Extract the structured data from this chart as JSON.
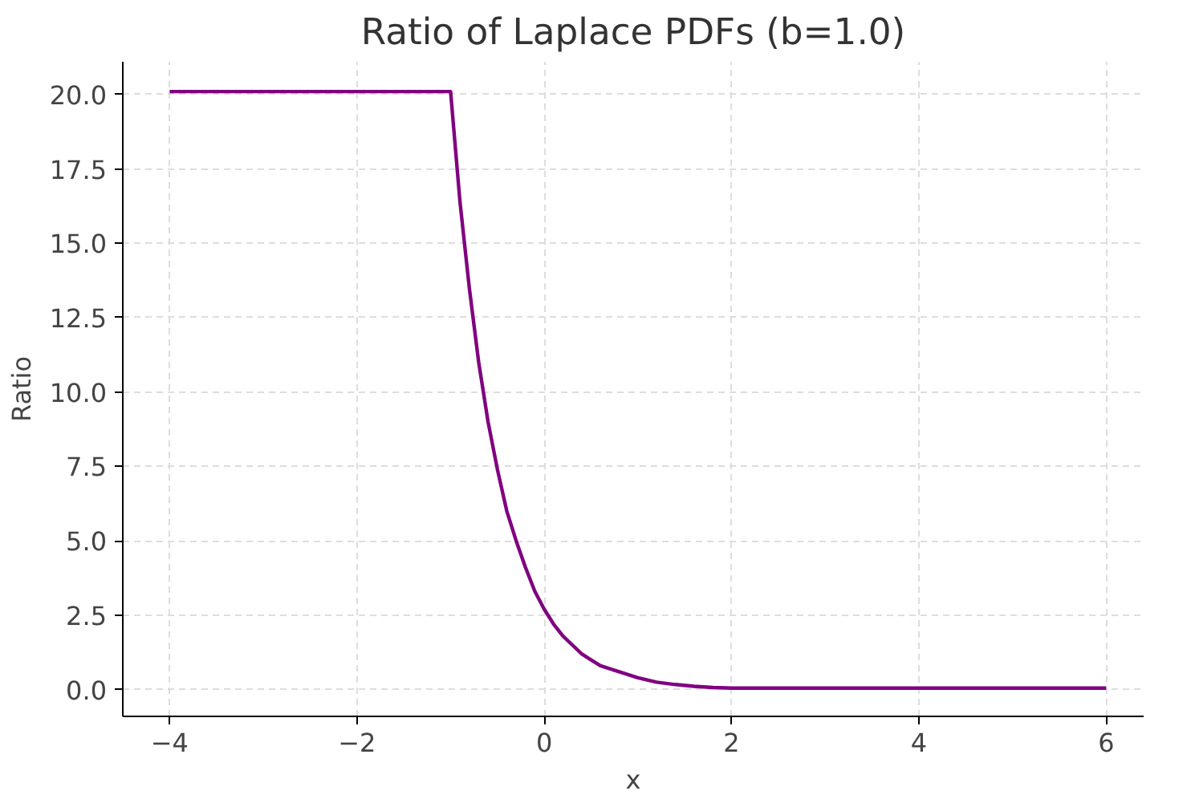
{
  "chart_data": {
    "type": "line",
    "title": "Ratio of Laplace PDFs (b=1.0)",
    "xlabel": "x",
    "ylabel": "Ratio",
    "x": [
      -4,
      -1,
      -0.9,
      -0.8,
      -0.7,
      -0.6,
      -0.5,
      -0.4,
      -0.3,
      -0.2,
      -0.1,
      0,
      0.1,
      0.2,
      0.3,
      0.4,
      0.5,
      0.6,
      0.7,
      0.8,
      0.9,
      1.0,
      1.2,
      1.4,
      1.6,
      1.8,
      2.0,
      6
    ],
    "series": [
      {
        "color": "#800080",
        "values": [
          20.1,
          20.1,
          16.4,
          13.5,
          11.0,
          9.0,
          7.4,
          6.0,
          5.0,
          4.1,
          3.3,
          2.7,
          2.2,
          1.8,
          1.5,
          1.2,
          1.0,
          0.8,
          0.7,
          0.6,
          0.5,
          0.4,
          0.25,
          0.17,
          0.11,
          0.07,
          0.05,
          0.05
        ]
      }
    ],
    "xlim": [
      -4.5,
      6.4
    ],
    "ylim": [
      -0.9,
      21.1
    ],
    "xticks": [
      {
        "value": -4,
        "label": "−4"
      },
      {
        "value": -2,
        "label": "−2"
      },
      0,
      2,
      4,
      6
    ],
    "yticks": [
      {
        "value": 0,
        "label": "0.0"
      },
      {
        "value": 2.5,
        "label": "2.5"
      },
      {
        "value": 5,
        "label": "5.0"
      },
      {
        "value": 7.5,
        "label": "7.5"
      },
      {
        "value": 10,
        "label": "10.0"
      },
      {
        "value": 12.5,
        "label": "12.5"
      },
      {
        "value": 15,
        "label": "15.0"
      },
      {
        "value": 17.5,
        "label": "17.5"
      },
      {
        "value": 20,
        "label": "20.0"
      }
    ],
    "grid": true,
    "line_style": "solid",
    "marker": "none"
  }
}
